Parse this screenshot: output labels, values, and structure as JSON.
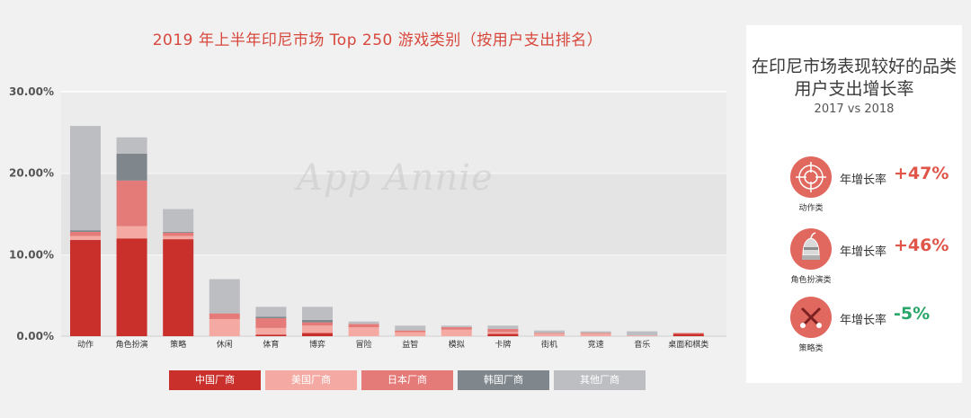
{
  "title": "2019 年上半年印尼市场 Top 250 游戏类别（按用户支出排名）",
  "watermark": "App Annie",
  "legend": [
    {
      "label": "中国厂商",
      "color": "#c9302c"
    },
    {
      "label": "美国厂商",
      "color": "#f4aaa3"
    },
    {
      "label": "日本厂商",
      "color": "#e57b78"
    },
    {
      "label": "韩国厂商",
      "color": "#7f868c"
    },
    {
      "label": "其他厂商",
      "color": "#bdbec2"
    }
  ],
  "chart_data": {
    "type": "bar",
    "stacked": true,
    "categories": [
      "动作",
      "角色扮演",
      "策略",
      "休闲",
      "体育",
      "博弈",
      "冒险",
      "益智",
      "模拟",
      "卡牌",
      "街机",
      "竞速",
      "音乐",
      "桌面和棋类"
    ],
    "series": [
      {
        "name": "中国厂商",
        "color": "#c9302c",
        "values": [
          11.8,
          12.0,
          11.9,
          0.0,
          0.2,
          0.4,
          0.0,
          0.0,
          0.0,
          0.3,
          0.0,
          0.0,
          0.0,
          0.3
        ]
      },
      {
        "name": "美国厂商",
        "color": "#f4aaa3",
        "values": [
          0.5,
          1.5,
          0.4,
          2.1,
          0.8,
          0.9,
          1.1,
          0.5,
          0.8,
          0.2,
          0.3,
          0.3,
          0.1,
          0.0
        ]
      },
      {
        "name": "日本厂商",
        "color": "#e57b78",
        "values": [
          0.5,
          5.6,
          0.4,
          0.7,
          1.2,
          0.4,
          0.4,
          0.2,
          0.3,
          0.4,
          0.1,
          0.1,
          0.0,
          0.1
        ]
      },
      {
        "name": "韩国厂商",
        "color": "#7f868c",
        "values": [
          0.2,
          3.3,
          0.1,
          0.0,
          0.2,
          0.3,
          0.0,
          0.0,
          0.0,
          0.0,
          0.0,
          0.0,
          0.0,
          0.0
        ]
      },
      {
        "name": "其他厂商",
        "color": "#bdbec2",
        "values": [
          12.8,
          2.0,
          2.8,
          4.2,
          1.2,
          1.6,
          0.3,
          0.6,
          0.2,
          0.4,
          0.3,
          0.2,
          0.5,
          0.0
        ]
      }
    ],
    "yticks": [
      "0.00%",
      "10.00%",
      "20.00%",
      "30.00%"
    ],
    "ylim": [
      0,
      30
    ],
    "grid": true,
    "legend_position": "bottom"
  },
  "panel": {
    "title": "在印尼市场表现较好的品类用户支出增长率",
    "subtitle": "2017 vs 2018",
    "items": [
      {
        "category": "动作类",
        "label": "年增长率",
        "value": "+47%",
        "value_color": "#e0554a",
        "icon": "crosshair-icon"
      },
      {
        "category": "角色扮演类",
        "label": "年增长率",
        "value": "+46%",
        "value_color": "#e0554a",
        "icon": "knight-helmet-icon"
      },
      {
        "category": "策略类",
        "label": "年增长率",
        "value": "-5%",
        "value_color": "#2aa66a",
        "icon": "crossed-swords-icon"
      }
    ]
  }
}
